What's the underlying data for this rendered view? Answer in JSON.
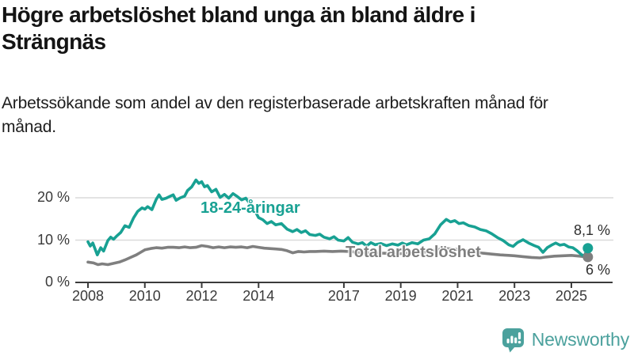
{
  "header": {
    "title": "Högre arbetslöshet bland unga än bland äldre i Strängnäs",
    "subtitle": "Arbetssökande som andel av den registerbaserade arbetskraften månad för månad."
  },
  "chart_data": {
    "type": "line",
    "title": "Högre arbetslöshet bland unga än bland äldre i Strängnäs",
    "xlabel": "",
    "ylabel": "",
    "ylim": [
      0,
      25
    ],
    "xlim": [
      2008,
      2025.9
    ],
    "grid": "horizontal",
    "grid_color": "#dadada",
    "axis_color": "#3b3b3b",
    "y_ticks": [
      {
        "label": "0 %",
        "value": 0
      },
      {
        "label": "10 %",
        "value": 10
      },
      {
        "label": "20 %",
        "value": 20
      }
    ],
    "x_ticks": [
      {
        "label": "2008",
        "value": 2008
      },
      {
        "label": "2010",
        "value": 2010
      },
      {
        "label": "2012",
        "value": 2012
      },
      {
        "label": "2014",
        "value": 2014
      },
      {
        "label": "2017",
        "value": 2017
      },
      {
        "label": "2019",
        "value": 2019
      },
      {
        "label": "2021",
        "value": 2021
      },
      {
        "label": "2023",
        "value": 2023
      },
      {
        "label": "2025",
        "value": 2025
      }
    ],
    "series": [
      {
        "name": "18-24-åringar",
        "color": "#18a193",
        "end_label": "8,1 %",
        "end_value": 8.1,
        "points": [
          [
            2008.0,
            9.6
          ],
          [
            2008.08,
            8.6
          ],
          [
            2008.17,
            9.3
          ],
          [
            2008.33,
            6.5
          ],
          [
            2008.45,
            8.2
          ],
          [
            2008.55,
            7.4
          ],
          [
            2008.7,
            9.9
          ],
          [
            2008.8,
            10.7
          ],
          [
            2008.9,
            10.2
          ],
          [
            2009.0,
            10.9
          ],
          [
            2009.15,
            11.8
          ],
          [
            2009.3,
            13.4
          ],
          [
            2009.45,
            13.0
          ],
          [
            2009.6,
            15.2
          ],
          [
            2009.75,
            16.8
          ],
          [
            2009.9,
            17.6
          ],
          [
            2010.0,
            17.3
          ],
          [
            2010.1,
            17.9
          ],
          [
            2010.25,
            17.2
          ],
          [
            2010.4,
            19.6
          ],
          [
            2010.5,
            20.7
          ],
          [
            2010.6,
            19.6
          ],
          [
            2010.75,
            19.9
          ],
          [
            2010.9,
            20.4
          ],
          [
            2011.0,
            20.7
          ],
          [
            2011.1,
            19.4
          ],
          [
            2011.25,
            20.0
          ],
          [
            2011.4,
            20.4
          ],
          [
            2011.5,
            21.7
          ],
          [
            2011.65,
            22.6
          ],
          [
            2011.8,
            24.2
          ],
          [
            2011.9,
            23.4
          ],
          [
            2012.0,
            23.8
          ],
          [
            2012.1,
            22.6
          ],
          [
            2012.2,
            22.9
          ],
          [
            2012.35,
            21.4
          ],
          [
            2012.5,
            22.0
          ],
          [
            2012.65,
            20.1
          ],
          [
            2012.8,
            20.8
          ],
          [
            2012.95,
            19.9
          ],
          [
            2013.1,
            21.0
          ],
          [
            2013.25,
            20.3
          ],
          [
            2013.4,
            19.5
          ],
          [
            2013.55,
            19.9
          ],
          [
            2013.7,
            18.6
          ],
          [
            2013.85,
            17.2
          ],
          [
            2014.0,
            15.3
          ],
          [
            2014.15,
            14.8
          ],
          [
            2014.3,
            13.9
          ],
          [
            2014.45,
            14.4
          ],
          [
            2014.6,
            13.6
          ],
          [
            2014.8,
            13.9
          ],
          [
            2015.0,
            12.6
          ],
          [
            2015.2,
            12.0
          ],
          [
            2015.35,
            12.5
          ],
          [
            2015.5,
            11.8
          ],
          [
            2015.65,
            12.2
          ],
          [
            2015.8,
            11.3
          ],
          [
            2016.0,
            11.1
          ],
          [
            2016.15,
            11.4
          ],
          [
            2016.3,
            10.7
          ],
          [
            2016.5,
            10.3
          ],
          [
            2016.65,
            10.8
          ],
          [
            2016.8,
            10.0
          ],
          [
            2017.0,
            9.8
          ],
          [
            2017.15,
            10.6
          ],
          [
            2017.3,
            9.5
          ],
          [
            2017.5,
            9.1
          ],
          [
            2017.65,
            9.4
          ],
          [
            2017.8,
            8.6
          ],
          [
            2017.95,
            9.4
          ],
          [
            2018.1,
            8.9
          ],
          [
            2018.3,
            9.2
          ],
          [
            2018.5,
            8.7
          ],
          [
            2018.7,
            9.1
          ],
          [
            2018.9,
            8.8
          ],
          [
            2019.05,
            9.3
          ],
          [
            2019.2,
            8.9
          ],
          [
            2019.4,
            9.4
          ],
          [
            2019.6,
            9.1
          ],
          [
            2019.8,
            10.0
          ],
          [
            2020.0,
            10.3
          ],
          [
            2020.2,
            11.5
          ],
          [
            2020.4,
            13.6
          ],
          [
            2020.6,
            14.9
          ],
          [
            2020.75,
            14.3
          ],
          [
            2020.9,
            14.6
          ],
          [
            2021.05,
            13.9
          ],
          [
            2021.2,
            14.1
          ],
          [
            2021.4,
            13.4
          ],
          [
            2021.6,
            13.1
          ],
          [
            2021.8,
            12.5
          ],
          [
            2022.0,
            12.2
          ],
          [
            2022.2,
            11.5
          ],
          [
            2022.4,
            10.6
          ],
          [
            2022.6,
            9.9
          ],
          [
            2022.8,
            8.9
          ],
          [
            2022.95,
            8.5
          ],
          [
            2023.1,
            9.4
          ],
          [
            2023.3,
            10.1
          ],
          [
            2023.5,
            9.3
          ],
          [
            2023.7,
            8.7
          ],
          [
            2023.85,
            8.3
          ],
          [
            2024.0,
            7.1
          ],
          [
            2024.15,
            8.2
          ],
          [
            2024.3,
            8.8
          ],
          [
            2024.45,
            9.3
          ],
          [
            2024.6,
            8.8
          ],
          [
            2024.75,
            9.0
          ],
          [
            2024.9,
            8.4
          ],
          [
            2025.05,
            8.2
          ],
          [
            2025.2,
            7.5
          ],
          [
            2025.35,
            6.6
          ],
          [
            2025.45,
            6.2
          ],
          [
            2025.58,
            8.1
          ]
        ]
      },
      {
        "name": "Total arbetslöshet",
        "color": "#7f7f7f",
        "end_label": "6 %",
        "end_value": 6.0,
        "points": [
          [
            2008.0,
            4.8
          ],
          [
            2008.2,
            4.6
          ],
          [
            2008.35,
            4.2
          ],
          [
            2008.5,
            4.4
          ],
          [
            2008.7,
            4.2
          ],
          [
            2008.9,
            4.5
          ],
          [
            2009.1,
            4.8
          ],
          [
            2009.3,
            5.3
          ],
          [
            2009.5,
            5.9
          ],
          [
            2009.7,
            6.5
          ],
          [
            2009.85,
            7.1
          ],
          [
            2010.0,
            7.7
          ],
          [
            2010.2,
            8.0
          ],
          [
            2010.4,
            8.2
          ],
          [
            2010.6,
            8.1
          ],
          [
            2010.8,
            8.3
          ],
          [
            2011.0,
            8.3
          ],
          [
            2011.2,
            8.2
          ],
          [
            2011.4,
            8.4
          ],
          [
            2011.6,
            8.2
          ],
          [
            2011.8,
            8.3
          ],
          [
            2012.0,
            8.7
          ],
          [
            2012.2,
            8.5
          ],
          [
            2012.4,
            8.2
          ],
          [
            2012.6,
            8.4
          ],
          [
            2012.8,
            8.2
          ],
          [
            2013.0,
            8.4
          ],
          [
            2013.2,
            8.3
          ],
          [
            2013.4,
            8.4
          ],
          [
            2013.6,
            8.2
          ],
          [
            2013.8,
            8.5
          ],
          [
            2014.0,
            8.3
          ],
          [
            2014.2,
            8.1
          ],
          [
            2014.4,
            8.0
          ],
          [
            2014.6,
            7.9
          ],
          [
            2014.8,
            7.8
          ],
          [
            2015.0,
            7.5
          ],
          [
            2015.2,
            7.0
          ],
          [
            2015.4,
            7.3
          ],
          [
            2015.6,
            7.2
          ],
          [
            2015.8,
            7.3
          ],
          [
            2016.0,
            7.3
          ],
          [
            2016.3,
            7.4
          ],
          [
            2016.6,
            7.3
          ],
          [
            2016.9,
            7.4
          ],
          [
            2017.2,
            7.3
          ],
          [
            2017.5,
            7.1
          ],
          [
            2017.8,
            7.0
          ],
          [
            2018.1,
            6.9
          ],
          [
            2018.4,
            6.9
          ],
          [
            2018.7,
            6.8
          ],
          [
            2019.0,
            6.8
          ],
          [
            2019.3,
            6.9
          ],
          [
            2019.6,
            7.0
          ],
          [
            2019.9,
            7.2
          ],
          [
            2020.2,
            7.6
          ],
          [
            2020.5,
            8.0
          ],
          [
            2020.8,
            7.9
          ],
          [
            2021.0,
            7.8
          ],
          [
            2021.3,
            7.5
          ],
          [
            2021.6,
            7.2
          ],
          [
            2021.9,
            6.9
          ],
          [
            2022.2,
            6.7
          ],
          [
            2022.5,
            6.5
          ],
          [
            2022.8,
            6.4
          ],
          [
            2023.0,
            6.3
          ],
          [
            2023.3,
            6.1
          ],
          [
            2023.6,
            5.9
          ],
          [
            2023.9,
            5.8
          ],
          [
            2024.1,
            6.0
          ],
          [
            2024.4,
            6.2
          ],
          [
            2024.7,
            6.3
          ],
          [
            2025.0,
            6.4
          ],
          [
            2025.3,
            6.2
          ],
          [
            2025.58,
            6.0
          ]
        ]
      }
    ]
  },
  "branding": {
    "logo_text": "Newsworthy",
    "logo_color": "#4ba19d"
  }
}
